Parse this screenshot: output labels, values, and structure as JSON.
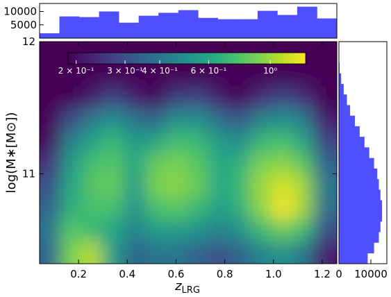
{
  "chart_data": [
    {
      "type": "heatmap",
      "x_label": {
        "main": "z",
        "sub": "LRG"
      },
      "y_label": "log(M∗[M⊙])",
      "xlim": [
        0.04,
        1.26
      ],
      "ylim": [
        10.32,
        12
      ],
      "xticks": [
        0.2,
        0.4,
        0.6,
        0.8,
        {
          "value": 1,
          "label": "1.0"
        },
        1.2
      ],
      "yticks": [
        11,
        12
      ],
      "colorbar": {
        "scale": "log",
        "clim": [
          0.187,
          1.34
        ],
        "ticks": [
          {
            "value": 0.2,
            "label": "2 × 10⁻¹"
          },
          {
            "value": 0.3,
            "label": "3 × 10⁻¹"
          },
          {
            "value": 0.4,
            "label": "4 × 10⁻¹"
          },
          {
            "value": 0.6,
            "label": "6 × 10⁻¹"
          },
          {
            "value": 1,
            "label": "10⁰"
          }
        ]
      },
      "x": [
        0.08,
        0.17,
        0.26,
        0.34,
        0.43,
        0.52,
        0.6,
        0.69,
        0.78,
        0.86,
        0.95,
        1.04,
        1.13,
        1.21
      ],
      "y": [
        11.92,
        11.75,
        11.58,
        11.41,
        11.24,
        11.07,
        10.91,
        10.74,
        10.57,
        10.4
      ],
      "z": [
        [
          0.19,
          0.19,
          0.19,
          0.19,
          0.19,
          0.19,
          0.19,
          0.19,
          0.19,
          0.19,
          0.19,
          0.19,
          0.19,
          0.19
        ],
        [
          0.19,
          0.19,
          0.19,
          0.19,
          0.19,
          0.19,
          0.19,
          0.19,
          0.19,
          0.19,
          0.19,
          0.19,
          0.19,
          0.19
        ],
        [
          0.19,
          0.19,
          0.22,
          0.28,
          0.22,
          0.19,
          0.26,
          0.28,
          0.22,
          0.19,
          0.24,
          0.28,
          0.24,
          0.19
        ],
        [
          0.19,
          0.3,
          0.42,
          0.5,
          0.4,
          0.35,
          0.5,
          0.5,
          0.38,
          0.32,
          0.45,
          0.5,
          0.42,
          0.22
        ],
        [
          0.2,
          0.45,
          0.6,
          0.7,
          0.55,
          0.6,
          0.75,
          0.7,
          0.55,
          0.5,
          0.7,
          0.75,
          0.6,
          0.28
        ],
        [
          0.25,
          0.55,
          0.75,
          0.8,
          0.6,
          0.85,
          0.9,
          0.8,
          0.6,
          0.65,
          0.9,
          0.95,
          0.8,
          0.35
        ],
        [
          0.3,
          0.6,
          0.8,
          0.85,
          0.55,
          0.9,
          0.95,
          0.85,
          0.6,
          0.7,
          1.0,
          1.2,
          1.0,
          0.4
        ],
        [
          0.35,
          0.65,
          0.75,
          0.75,
          0.5,
          0.75,
          0.8,
          0.7,
          0.55,
          0.65,
          0.95,
          1.3,
          1.0,
          0.38
        ],
        [
          0.4,
          0.8,
          0.7,
          0.6,
          0.45,
          0.55,
          0.55,
          0.5,
          0.45,
          0.5,
          0.7,
          0.85,
          0.7,
          0.3
        ],
        [
          0.35,
          0.9,
          1.1,
          0.55,
          0.35,
          0.4,
          0.4,
          0.35,
          0.3,
          0.35,
          0.45,
          0.5,
          0.4,
          0.22
        ]
      ]
    },
    {
      "type": "histogram",
      "orientation": "vertical",
      "color": "#4f4fff",
      "bins": [
        0.04,
        0.1213,
        0.2027,
        0.284,
        0.3653,
        0.4467,
        0.528,
        0.6093,
        0.6907,
        0.772,
        0.8533,
        0.9347,
        1.016,
        1.0973,
        1.1787,
        1.26
      ],
      "values": [
        1840,
        8150,
        7900,
        10000,
        5800,
        8400,
        9500,
        10500,
        7600,
        7100,
        7100,
        10250,
        8700,
        11800,
        7400
      ],
      "xlim": [
        0.04,
        1.26
      ],
      "ylim": [
        0,
        13000
      ],
      "yticks": [
        5000,
        10000
      ]
    },
    {
      "type": "histogram",
      "orientation": "horizontal",
      "color": "#4f4fff",
      "bins": [
        10.32,
        10.4,
        10.48,
        10.56,
        10.64,
        10.72,
        10.8,
        10.88,
        10.96,
        11.04,
        11.12,
        11.2,
        11.28,
        11.36,
        11.44,
        11.52,
        11.6,
        11.68,
        11.76,
        11.84,
        11.92
      ],
      "values": [
        9000,
        11000,
        12500,
        13000,
        13500,
        13500,
        13000,
        12500,
        12000,
        11000,
        9500,
        8000,
        6500,
        5000,
        3500,
        2500,
        1500,
        700,
        200,
        50
      ],
      "xlim": [
        0,
        15000
      ],
      "ylim": [
        10.32,
        12
      ],
      "xticks": [
        0,
        10000
      ]
    }
  ]
}
